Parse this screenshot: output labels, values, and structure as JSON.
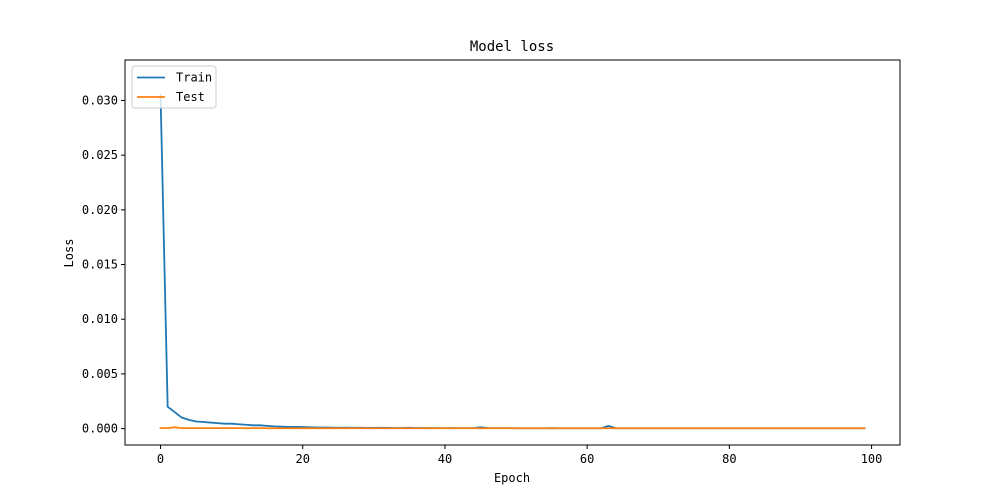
{
  "chart_data": {
    "type": "line",
    "title": "Model loss",
    "xlabel": "Epoch",
    "ylabel": "Loss",
    "xlim": [
      -5,
      104
    ],
    "ylim": [
      -0.0015,
      0.0337
    ],
    "xticks": [
      0,
      20,
      40,
      60,
      80,
      100
    ],
    "yticks": [
      0.0,
      0.005,
      0.01,
      0.015,
      0.02,
      0.025,
      0.03
    ],
    "xtick_labels": [
      "0",
      "20",
      "40",
      "60",
      "80",
      "100"
    ],
    "ytick_labels": [
      "0.000",
      "0.005",
      "0.010",
      "0.015",
      "0.020",
      "0.025",
      "0.030"
    ],
    "grid": false,
    "legend_position": "upper-left",
    "series": [
      {
        "name": "Train",
        "color": "#1f77b4",
        "x": [
          0,
          1,
          2,
          3,
          4,
          5,
          6,
          7,
          8,
          9,
          10,
          11,
          12,
          13,
          14,
          15,
          16,
          17,
          18,
          19,
          20,
          21,
          22,
          23,
          24,
          25,
          26,
          27,
          28,
          29,
          30,
          31,
          32,
          33,
          34,
          35,
          36,
          37,
          38,
          39,
          40,
          41,
          42,
          43,
          44,
          45,
          46,
          47,
          48,
          49,
          50,
          51,
          52,
          53,
          54,
          55,
          56,
          57,
          58,
          59,
          60,
          61,
          62,
          63,
          64,
          65,
          66,
          67,
          68,
          69,
          70,
          71,
          72,
          73,
          74,
          75,
          76,
          77,
          78,
          79,
          80,
          81,
          82,
          83,
          84,
          85,
          86,
          87,
          88,
          89,
          90,
          91,
          92,
          93,
          94,
          95,
          96,
          97,
          98,
          99
        ],
        "values": [
          0.0305,
          0.002,
          0.0015,
          0.001,
          0.0008,
          0.00065,
          0.0006,
          0.00055,
          0.0005,
          0.00045,
          0.00045,
          0.0004,
          0.00035,
          0.0003,
          0.0003,
          0.00025,
          0.0002,
          0.00018,
          0.00016,
          0.00015,
          0.00014,
          0.00012,
          0.0001,
          0.0001,
          9e-05,
          8e-05,
          9e-05,
          7e-05,
          7e-05,
          6e-05,
          6e-05,
          8e-05,
          6e-05,
          5e-05,
          5e-05,
          7e-05,
          5e-05,
          5e-05,
          5e-05,
          4e-05,
          4e-05,
          5e-05,
          4e-05,
          4e-05,
          4e-05,
          0.00012,
          5e-05,
          4e-05,
          4e-05,
          4e-05,
          3e-05,
          3e-05,
          3e-05,
          3e-05,
          3e-05,
          4e-05,
          3e-05,
          3e-05,
          3e-05,
          3e-05,
          3e-05,
          3e-05,
          3e-05,
          0.00025,
          3e-05,
          3e-05,
          3e-05,
          3e-05,
          3e-05,
          3e-05,
          3e-05,
          3e-05,
          3e-05,
          3e-05,
          3e-05,
          3e-05,
          3e-05,
          3e-05,
          3e-05,
          3e-05,
          3e-05,
          3e-05,
          3e-05,
          3e-05,
          3e-05,
          3e-05,
          3e-05,
          3e-05,
          3e-05,
          3e-05,
          3e-05,
          3e-05,
          3e-05,
          3e-05,
          3e-05,
          3e-05,
          3e-05,
          3e-05,
          3e-05,
          3e-05
        ]
      },
      {
        "name": "Test",
        "color": "#ff7f0e",
        "x": [
          0,
          1,
          2,
          3,
          4,
          5,
          6,
          7,
          8,
          9,
          10,
          11,
          12,
          13,
          14,
          15,
          16,
          17,
          18,
          19,
          20,
          21,
          22,
          23,
          24,
          25,
          26,
          27,
          28,
          29,
          30,
          31,
          32,
          33,
          34,
          35,
          36,
          37,
          38,
          39,
          40,
          41,
          42,
          43,
          44,
          45,
          46,
          47,
          48,
          49,
          50,
          51,
          52,
          53,
          54,
          55,
          56,
          57,
          58,
          59,
          60,
          61,
          62,
          63,
          64,
          65,
          66,
          67,
          68,
          69,
          70,
          71,
          72,
          73,
          74,
          75,
          76,
          77,
          78,
          79,
          80,
          81,
          82,
          83,
          84,
          85,
          86,
          87,
          88,
          89,
          90,
          91,
          92,
          93,
          94,
          95,
          96,
          97,
          98,
          99
        ],
        "values": [
          5e-05,
          4e-05,
          0.00012,
          4e-05,
          4e-05,
          4e-05,
          4e-05,
          4e-05,
          4e-05,
          4e-05,
          4e-05,
          4e-05,
          3e-05,
          4e-05,
          4e-05,
          3e-05,
          3e-05,
          3e-05,
          3e-05,
          3e-05,
          3e-05,
          3e-05,
          3e-05,
          3e-05,
          3e-05,
          3e-05,
          3e-05,
          3e-05,
          3e-05,
          3e-05,
          3e-05,
          3e-05,
          3e-05,
          3e-05,
          3e-05,
          3e-05,
          3e-05,
          3e-05,
          3e-05,
          3e-05,
          3e-05,
          3e-05,
          3e-05,
          3e-05,
          3e-05,
          3e-05,
          3e-05,
          3e-05,
          3e-05,
          3e-05,
          3e-05,
          3e-05,
          3e-05,
          3e-05,
          3e-05,
          3e-05,
          3e-05,
          3e-05,
          3e-05,
          3e-05,
          3e-05,
          3e-05,
          3e-05,
          3e-05,
          3e-05,
          3e-05,
          3e-05,
          3e-05,
          3e-05,
          3e-05,
          3e-05,
          3e-05,
          3e-05,
          3e-05,
          3e-05,
          3e-05,
          3e-05,
          3e-05,
          3e-05,
          3e-05,
          3e-05,
          3e-05,
          3e-05,
          3e-05,
          3e-05,
          3e-05,
          3e-05,
          3e-05,
          3e-05,
          3e-05,
          3e-05,
          3e-05,
          3e-05,
          3e-05,
          3e-05,
          3e-05,
          3e-05,
          3e-05,
          3e-05,
          3e-05
        ]
      }
    ]
  }
}
